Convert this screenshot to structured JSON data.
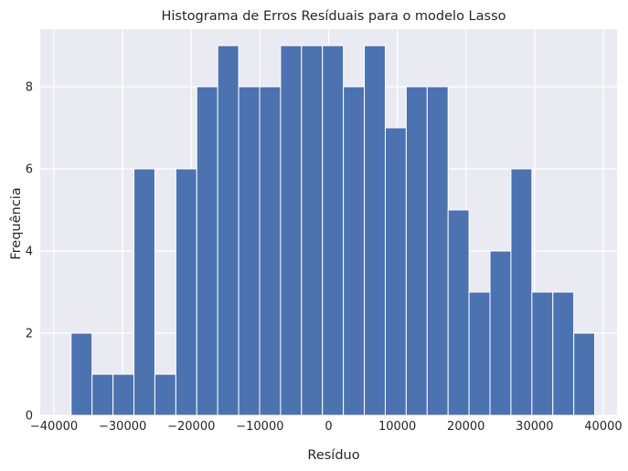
{
  "chart_data": {
    "type": "bar",
    "title": "Histograma de Erros Resíduais para o modelo Lasso",
    "xlabel": "Resíduo",
    "ylabel": "Frequência",
    "bin_start": -37500,
    "bin_width": 3050,
    "values": [
      2,
      1,
      1,
      6,
      1,
      6,
      8,
      9,
      8,
      8,
      9,
      9,
      9,
      8,
      9,
      7,
      8,
      8,
      5,
      3,
      4,
      6,
      3,
      3,
      2
    ],
    "xlim": [
      -42000,
      42000
    ],
    "ylim": [
      0,
      9.4
    ],
    "xticks": [
      -40000,
      -30000,
      -20000,
      -10000,
      0,
      10000,
      20000,
      30000,
      40000
    ],
    "xtick_labels": [
      "−40000",
      "−30000",
      "−20000",
      "−10000",
      "0",
      "10000",
      "20000",
      "30000",
      "40000"
    ],
    "yticks": [
      0,
      2,
      4,
      6,
      8
    ],
    "ytick_labels": [
      "0",
      "2",
      "4",
      "6",
      "8"
    ],
    "grid": true,
    "colors": {
      "bar": "#4c72b0",
      "plot_background": "#eaeaf2",
      "grid": "#ffffff",
      "edge": "#ffffff"
    }
  }
}
